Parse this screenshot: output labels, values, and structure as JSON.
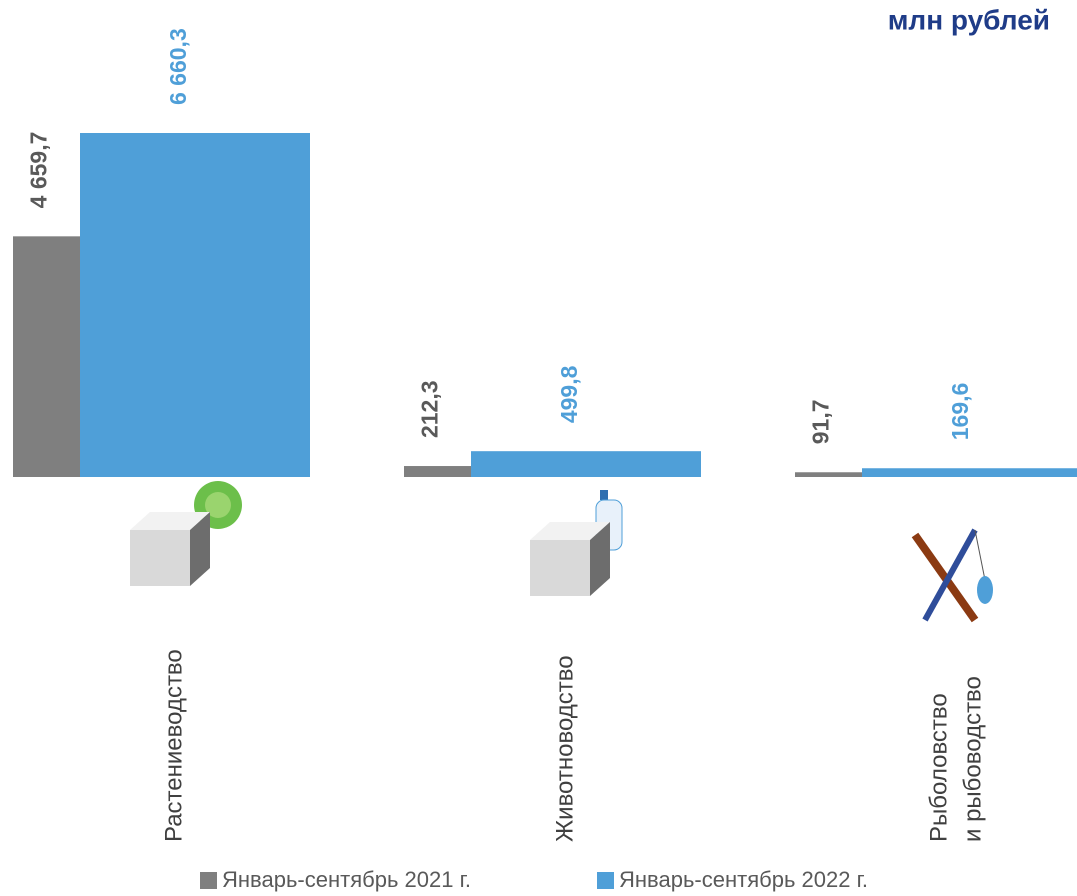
{
  "chart_data": {
    "type": "bar",
    "title": "млн рублей",
    "categories": [
      "Растениеводство",
      "Животноводство",
      [
        "Рыболовство",
        "и рыбоводство"
      ]
    ],
    "series": [
      {
        "name": "Январь-сентябрь 2021 г.",
        "color": "#7f7f7f",
        "values": [
          4659.7,
          212.3,
          91.7
        ],
        "value_labels": [
          "4 659,7",
          "212,3",
          "91,7"
        ],
        "label_color": "#595959"
      },
      {
        "name": "Январь-сентябрь 2022 г.",
        "color": "#4f9fd8",
        "values": [
          6660.3,
          499.8,
          169.6
        ],
        "value_labels": [
          "6 660,3",
          "499,8",
          "169,6"
        ],
        "label_color": "#4f9fd8"
      }
    ]
  }
}
